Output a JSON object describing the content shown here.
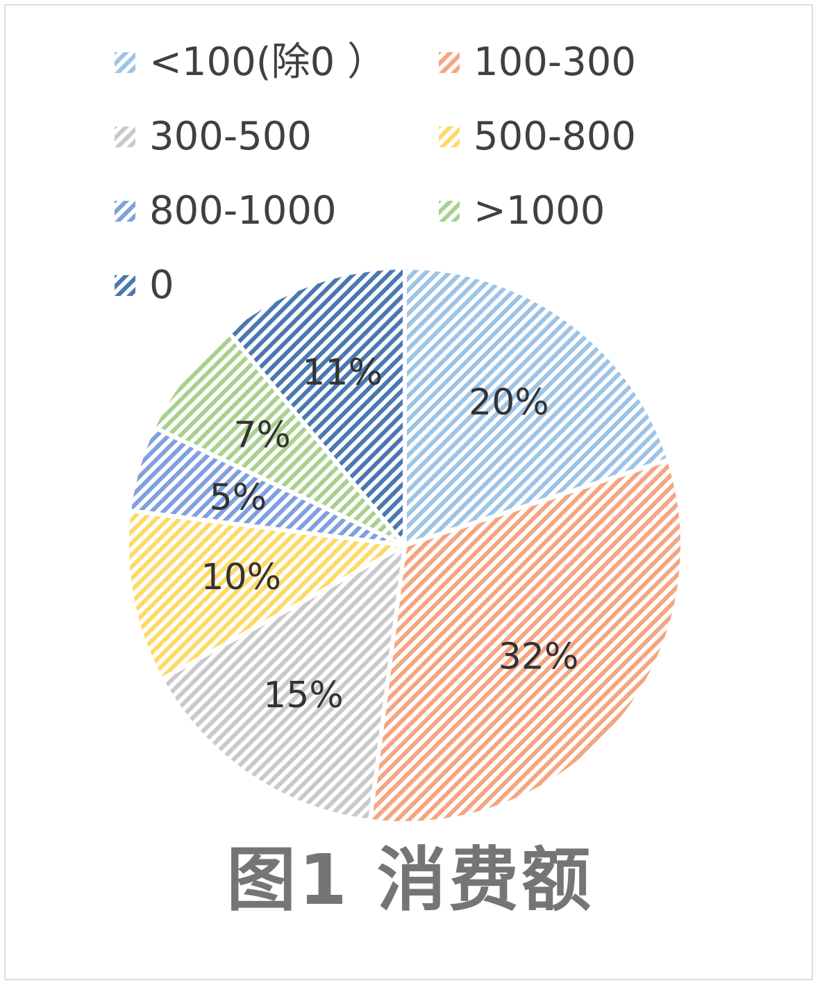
{
  "chart_data": {
    "type": "pie",
    "categories": [
      "<100(除0 ）",
      "100-300",
      "300-500",
      "500-800",
      "800-1000",
      ">1000",
      "0"
    ],
    "values": [
      20,
      32,
      15,
      10,
      5,
      7,
      11
    ],
    "value_labels": [
      "20%",
      "32%",
      "15%",
      "10%",
      "5%",
      "7%",
      "11%"
    ],
    "colors": [
      "#9dc3e6",
      "#f4a582",
      "#c9c9c9",
      "#ffd966",
      "#7f9fdf",
      "#a9d18e",
      "#4a78b0"
    ],
    "title": "",
    "legend_position": "top",
    "fill_pattern": "diagonal-stripes"
  },
  "caption": "图1 消费额"
}
